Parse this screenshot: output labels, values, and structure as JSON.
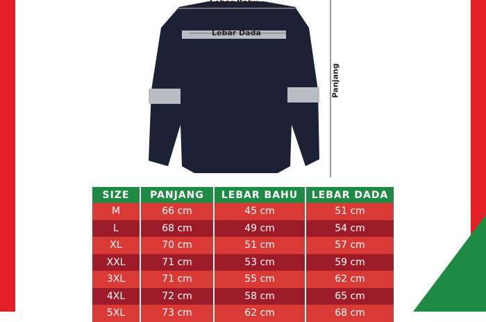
{
  "labels": {
    "shoulder": "Lebar Bahu",
    "chest": "Lebar Dada",
    "length": "Panjang"
  },
  "table": {
    "headers": [
      "SIZE",
      "PANJANG",
      "LEBAR BAHU",
      "LEBAR DADA"
    ],
    "rows": [
      [
        "M",
        "66 cm",
        "45 cm",
        "51 cm"
      ],
      [
        "L",
        "68 cm",
        "49 cm",
        "54 cm"
      ],
      [
        "XL",
        "70 cm",
        "51 cm",
        "57 cm"
      ],
      [
        "XXL",
        "71 cm",
        "53 cm",
        "59 cm"
      ],
      [
        "3XL",
        "71 cm",
        "55 cm",
        "62 cm"
      ],
      [
        "4XL",
        "72 cm",
        "58 cm",
        "65 cm"
      ],
      [
        "5XL",
        "73 cm",
        "62 cm",
        "68 cm"
      ]
    ]
  },
  "colors": {
    "red": "#e31e24",
    "green": "#1e8a44",
    "row_light": "#d93a35",
    "row_dark": "#9e1c2a",
    "jacket": "#1c2136"
  }
}
